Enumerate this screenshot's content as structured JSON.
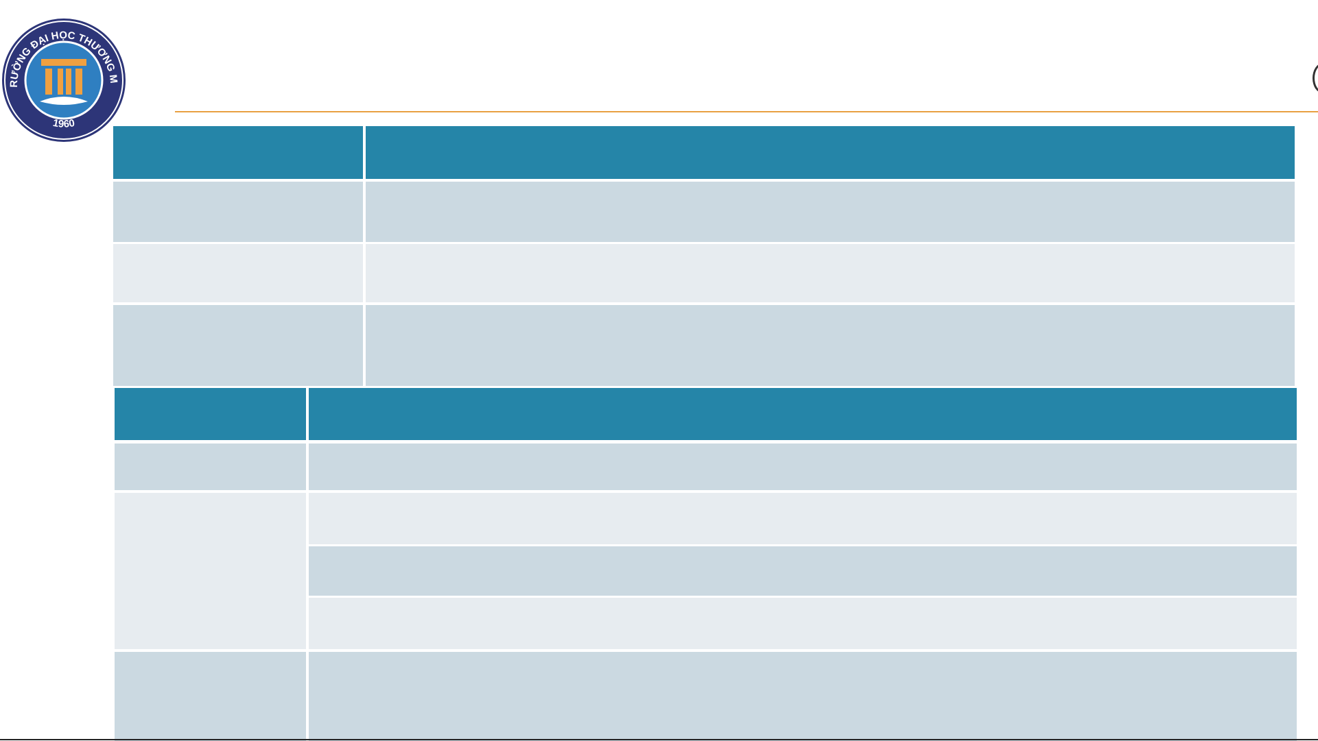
{
  "logo": {
    "name": "TRƯỜNG ĐẠI HỌC THƯƠNG MẠI",
    "year": "1960"
  }
}
